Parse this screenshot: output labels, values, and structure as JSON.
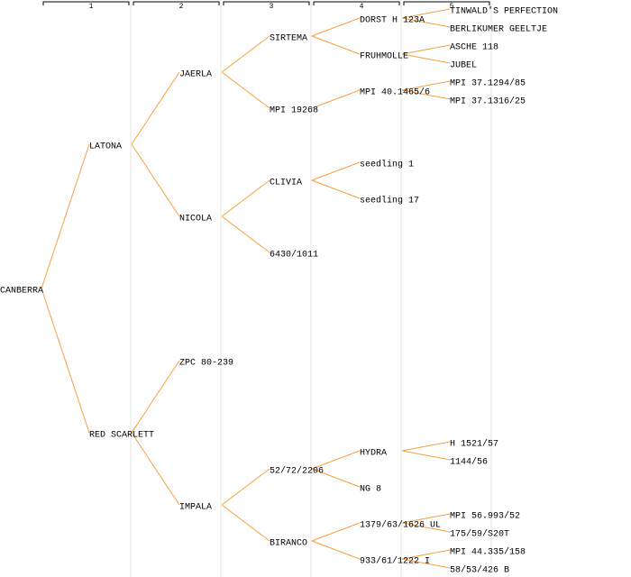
{
  "generations": [
    1,
    2,
    3,
    4,
    5
  ],
  "tree": {
    "name": "CANBERRA",
    "sire": {
      "name": "LATONA",
      "sire": {
        "name": "JAERLA",
        "sire": {
          "name": "SIRTEMA",
          "sire": {
            "name": "DORST H 123A",
            "sire": {
              "name": "TINWALD'S PERFECTION"
            },
            "dam": {
              "name": "BERLIKUMER GEELTJE"
            }
          },
          "dam": {
            "name": "FRUHMOLLE",
            "sire": {
              "name": "ASCHE 118"
            },
            "dam": {
              "name": "JUBEL"
            }
          }
        },
        "dam": {
          "name": "MPI 19268",
          "color": "#0000cc",
          "sire": {
            "name": "MPI 40.1465/6",
            "sire": {
              "name": "MPI 37.1294/85"
            },
            "dam": {
              "name": "MPI 37.1316/25"
            }
          }
        }
      },
      "dam": {
        "name": "NICOLA",
        "sire": {
          "name": "CLIVIA",
          "sire": {
            "name": "seedling 1"
          },
          "dam": {
            "name": "seedling 17"
          }
        },
        "dam": {
          "name": "6430/1011"
        }
      }
    },
    "dam": {
      "name": "RED SCARLETT",
      "sire": {
        "name": "ZPC 80-239"
      },
      "dam": {
        "name": "IMPALA",
        "sire": {
          "name": "52/72/2206",
          "sire": {
            "name": "HYDRA",
            "sire": {
              "name": "H 1521/57"
            },
            "dam": {
              "name": "1144/56"
            }
          },
          "dam": {
            "name": "NG 8"
          }
        },
        "dam": {
          "name": "BIRANCO",
          "sire": {
            "name": "1379/63/1626 UL",
            "sire": {
              "name": "MPI 56.993/52"
            },
            "dam": {
              "name": "175/59/S20T"
            }
          },
          "dam": {
            "name": "933/61/1222 I",
            "sire": {
              "name": "MPI 44.335/158"
            },
            "dam": {
              "name": "58/53/426 B"
            }
          }
        }
      }
    }
  }
}
